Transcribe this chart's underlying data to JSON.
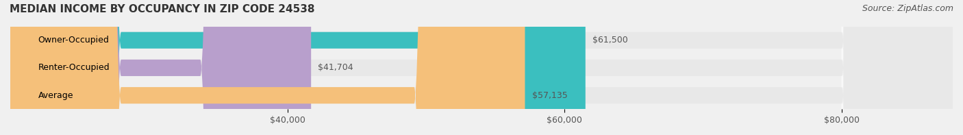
{
  "title": "MEDIAN INCOME BY OCCUPANCY IN ZIP CODE 24538",
  "source": "Source: ZipAtlas.com",
  "categories": [
    "Owner-Occupied",
    "Renter-Occupied",
    "Average"
  ],
  "values": [
    61500,
    41704,
    57135
  ],
  "value_labels": [
    "$61,500",
    "$41,704",
    "$57,135"
  ],
  "bar_colors": [
    "#3bbfbf",
    "#b89fcc",
    "#f5c07a"
  ],
  "bar_edge_colors": [
    "#3bbfbf",
    "#b89fcc",
    "#f5c07a"
  ],
  "bg_color": "#f0f0f0",
  "bar_bg_color": "#e8e8e8",
  "title_fontsize": 11,
  "source_fontsize": 9,
  "label_fontsize": 9,
  "value_fontsize": 9,
  "tick_fontsize": 9,
  "xlim_left": 20000,
  "xlim_right": 88000,
  "xticks": [
    40000,
    60000,
    80000
  ],
  "xtick_labels": [
    "$40,000",
    "$60,000",
    "$80,000"
  ]
}
